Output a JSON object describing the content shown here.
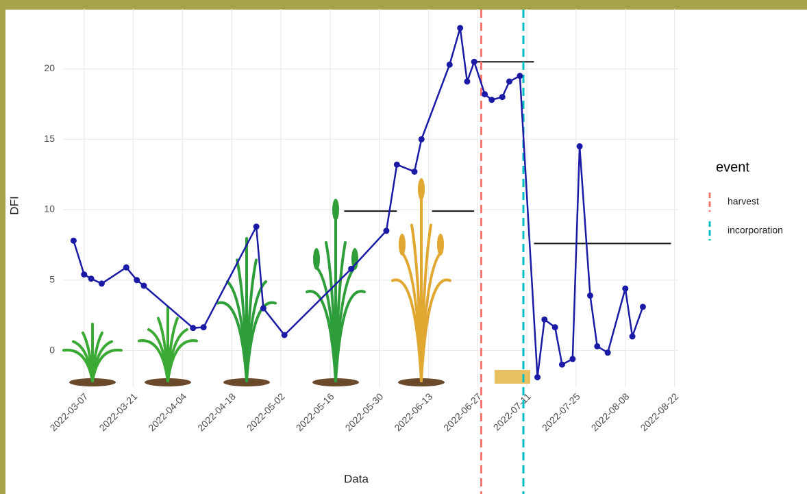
{
  "chart_data": {
    "type": "line",
    "x_label": "Data",
    "y_label": "DFI",
    "x": [
      "2022-03-04",
      "2022-03-07",
      "2022-03-09",
      "2022-03-12",
      "2022-03-19",
      "2022-03-22",
      "2022-03-24",
      "2022-04-07",
      "2022-04-10",
      "2022-04-25",
      "2022-04-27",
      "2022-05-03",
      "2022-05-22",
      "2022-06-01",
      "2022-06-04",
      "2022-06-09",
      "2022-06-11",
      "2022-06-19",
      "2022-06-22",
      "2022-06-24",
      "2022-06-26",
      "2022-06-29",
      "2022-07-01",
      "2022-07-04",
      "2022-07-06",
      "2022-07-09",
      "2022-07-14",
      "2022-07-16",
      "2022-07-19",
      "2022-07-21",
      "2022-07-24",
      "2022-07-26",
      "2022-07-29",
      "2022-07-31",
      "2022-08-03",
      "2022-08-08",
      "2022-08-10",
      "2022-08-13"
    ],
    "series": [
      {
        "color": "#1a1aa6",
        "values": [
          7.8,
          5.4,
          5.1,
          4.75,
          5.9,
          5.0,
          4.6,
          1.6,
          1.65,
          8.8,
          3.0,
          1.1,
          5.8,
          8.5,
          13.2,
          12.7,
          15.0,
          20.3,
          22.9,
          19.1,
          20.5,
          18.2,
          17.8,
          18.0,
          19.1,
          19.5,
          -1.9,
          2.2,
          1.65,
          -1.0,
          -0.6,
          14.5,
          3.9,
          0.3,
          -0.15,
          4.4,
          1.0,
          3.1
        ]
      }
    ],
    "reference_lines": [
      {
        "x": [
          "2022-05-20",
          "2022-06-04"
        ],
        "y": 9.9
      },
      {
        "x": [
          "2022-06-14",
          "2022-06-26"
        ],
        "y": 9.9
      },
      {
        "x": [
          "2022-06-26",
          "2022-07-13"
        ],
        "y": 20.5
      },
      {
        "x": [
          "2022-07-13",
          "2022-08-21"
        ],
        "y": 7.6
      }
    ],
    "legend_title": "event",
    "events": [
      {
        "name": "harvest",
        "color": "#f8766d",
        "x": "2022-06-28"
      },
      {
        "name": "incorporation",
        "color": "#00bfc4",
        "x": "2022-07-10"
      }
    ],
    "xlim": [
      "2022-03-01",
      "2022-08-25"
    ],
    "xticks": [
      "2022-03-07",
      "2022-03-21",
      "2022-04-04",
      "2022-04-18",
      "2022-05-02",
      "2022-05-16",
      "2022-05-30",
      "2022-06-13",
      "2022-06-27",
      "2022-07-11",
      "2022-07-25",
      "2022-08-08",
      "2022-08-22"
    ],
    "ylim": [
      -2.6,
      24.5
    ],
    "yticks": [
      0,
      5,
      10,
      15,
      20
    ],
    "grid": true
  }
}
